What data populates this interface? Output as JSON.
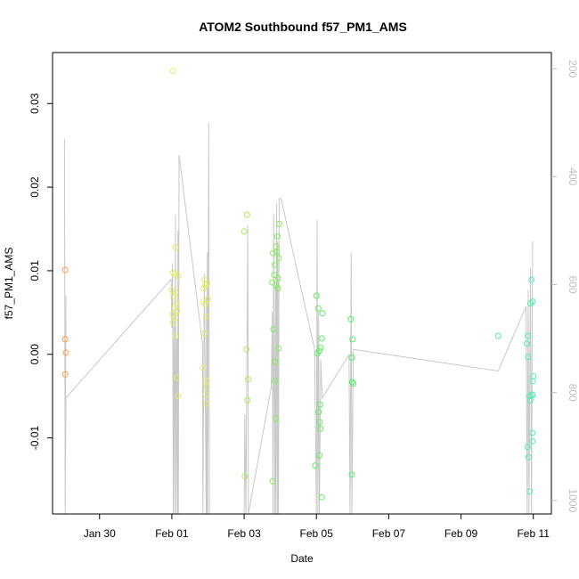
{
  "chart_data": {
    "type": "scatter",
    "title": "ATOM2 Southbound f57_PM1_AMS",
    "xlabel": "Date",
    "ylabel": "f57_PM1_AMS",
    "xlim": [
      -2.3,
      11.5
    ],
    "ylim": [
      -0.0191,
      0.0361
    ],
    "y2lim": [
      1025,
      170
    ],
    "x_ticks": [
      {
        "value": -1,
        "label": "Jan 30"
      },
      {
        "value": 1,
        "label": "Feb 01"
      },
      {
        "value": 3,
        "label": "Feb 03"
      },
      {
        "value": 5,
        "label": "Feb 05"
      },
      {
        "value": 7,
        "label": "Feb 07"
      },
      {
        "value": 9,
        "label": "Feb 09"
      },
      {
        "value": 11,
        "label": "Feb 11"
      }
    ],
    "y_ticks": [
      {
        "value": -0.01,
        "label": "-0.01"
      },
      {
        "value": 0.0,
        "label": "0.00"
      },
      {
        "value": 0.01,
        "label": "0.01"
      },
      {
        "value": 0.02,
        "label": "0.02"
      },
      {
        "value": 0.03,
        "label": "0.03"
      }
    ],
    "y2_ticks": [
      {
        "value": 200,
        "label": "200"
      },
      {
        "value": 400,
        "label": "400"
      },
      {
        "value": 600,
        "label": "600"
      },
      {
        "value": 800,
        "label": "800"
      },
      {
        "value": 1000,
        "label": "1000"
      }
    ],
    "points": [
      {
        "x": -1.95,
        "y": 0.0101,
        "color": "#f0a050"
      },
      {
        "x": -1.95,
        "y": 0.0018,
        "color": "#f0a050"
      },
      {
        "x": -1.93,
        "y": 0.0002,
        "color": "#f0a050"
      },
      {
        "x": -1.95,
        "y": -0.0024,
        "color": "#f0a050"
      },
      {
        "x": 1.03,
        "y": 0.0339,
        "color": "#e4ee60"
      },
      {
        "x": 1.1,
        "y": 0.0128,
        "color": "#e4ee60"
      },
      {
        "x": 1.03,
        "y": 0.0098,
        "color": "#e4ee60"
      },
      {
        "x": 1.08,
        "y": 0.0096,
        "color": "#e4ee60"
      },
      {
        "x": 1.18,
        "y": 0.0094,
        "color": "#e4ee60"
      },
      {
        "x": 1.0,
        "y": 0.0077,
        "color": "#e4ee60"
      },
      {
        "x": 1.1,
        "y": 0.0074,
        "color": "#e4ee60"
      },
      {
        "x": 1.05,
        "y": 0.007,
        "color": "#e4ee60"
      },
      {
        "x": 1.13,
        "y": 0.0061,
        "color": "#e4ee60"
      },
      {
        "x": 1.08,
        "y": 0.0056,
        "color": "#e4ee60"
      },
      {
        "x": 1.15,
        "y": 0.0052,
        "color": "#e4ee60"
      },
      {
        "x": 1.02,
        "y": 0.0048,
        "color": "#e4ee60"
      },
      {
        "x": 1.09,
        "y": 0.0044,
        "color": "#e4ee60"
      },
      {
        "x": 1.04,
        "y": 0.0038,
        "color": "#e4ee60"
      },
      {
        "x": 1.1,
        "y": 0.0022,
        "color": "#e4ee60"
      },
      {
        "x": 1.13,
        "y": -0.0028,
        "color": "#e4ee60"
      },
      {
        "x": 1.17,
        "y": -0.005,
        "color": "#e4ee60"
      },
      {
        "x": 1.9,
        "y": 0.0089,
        "color": "#e4ee60"
      },
      {
        "x": 1.98,
        "y": 0.0085,
        "color": "#e4ee60"
      },
      {
        "x": 1.93,
        "y": 0.0083,
        "color": "#e4ee60"
      },
      {
        "x": 1.88,
        "y": 0.0079,
        "color": "#e4ee60"
      },
      {
        "x": 2.0,
        "y": 0.0066,
        "color": "#e4ee60"
      },
      {
        "x": 1.87,
        "y": 0.0063,
        "color": "#e4ee60"
      },
      {
        "x": 1.92,
        "y": 0.006,
        "color": "#e4ee60"
      },
      {
        "x": 1.95,
        "y": 0.0045,
        "color": "#e4ee60"
      },
      {
        "x": 1.9,
        "y": 0.0025,
        "color": "#e4ee60"
      },
      {
        "x": 1.85,
        "y": -0.0016,
        "color": "#e4ee60"
      },
      {
        "x": 1.94,
        "y": -0.0031,
        "color": "#e4ee60"
      },
      {
        "x": 1.97,
        "y": -0.0039,
        "color": "#e4ee60"
      },
      {
        "x": 1.94,
        "y": -0.0048,
        "color": "#e4ee60"
      },
      {
        "x": 1.96,
        "y": -0.0059,
        "color": "#e4ee60"
      },
      {
        "x": 3.08,
        "y": 0.0167,
        "color": "#a8ee58"
      },
      {
        "x": 3.0,
        "y": 0.0147,
        "color": "#a8ee58"
      },
      {
        "x": 3.06,
        "y": 0.0006,
        "color": "#a8ee58"
      },
      {
        "x": 3.11,
        "y": -0.003,
        "color": "#a8ee58"
      },
      {
        "x": 3.09,
        "y": -0.0055,
        "color": "#a8ee58"
      },
      {
        "x": 3.02,
        "y": -0.0146,
        "color": "#a8ee58"
      },
      {
        "x": 3.97,
        "y": 0.0156,
        "color": "#80ee58"
      },
      {
        "x": 3.92,
        "y": 0.0141,
        "color": "#80ee58"
      },
      {
        "x": 3.88,
        "y": 0.0129,
        "color": "#80ee58"
      },
      {
        "x": 3.9,
        "y": 0.0122,
        "color": "#80ee58"
      },
      {
        "x": 3.8,
        "y": 0.0121,
        "color": "#80ee58"
      },
      {
        "x": 3.96,
        "y": 0.0115,
        "color": "#80ee58"
      },
      {
        "x": 3.85,
        "y": 0.0107,
        "color": "#80ee58"
      },
      {
        "x": 3.83,
        "y": 0.0095,
        "color": "#80ee58"
      },
      {
        "x": 3.94,
        "y": 0.0091,
        "color": "#80ee58"
      },
      {
        "x": 3.78,
        "y": 0.0086,
        "color": "#80ee58"
      },
      {
        "x": 3.89,
        "y": 0.0083,
        "color": "#80ee58"
      },
      {
        "x": 3.93,
        "y": 0.0079,
        "color": "#80ee58"
      },
      {
        "x": 3.81,
        "y": 0.003,
        "color": "#80ee58"
      },
      {
        "x": 3.95,
        "y": 0.0007,
        "color": "#80ee58"
      },
      {
        "x": 3.86,
        "y": -0.0009,
        "color": "#80ee58"
      },
      {
        "x": 3.85,
        "y": -0.0032,
        "color": "#80ee58"
      },
      {
        "x": 3.87,
        "y": -0.0077,
        "color": "#80ee58"
      },
      {
        "x": 3.79,
        "y": -0.0152,
        "color": "#80ee58"
      },
      {
        "x": 5.0,
        "y": 0.007,
        "color": "#60ee60"
      },
      {
        "x": 5.05,
        "y": 0.0055,
        "color": "#60ee60"
      },
      {
        "x": 5.17,
        "y": 0.0049,
        "color": "#60ee60"
      },
      {
        "x": 5.15,
        "y": 0.0019,
        "color": "#60ee60"
      },
      {
        "x": 5.12,
        "y": 0.0008,
        "color": "#60ee60"
      },
      {
        "x": 5.08,
        "y": 0.0004,
        "color": "#60ee60"
      },
      {
        "x": 5.03,
        "y": 0.0001,
        "color": "#60ee60"
      },
      {
        "x": 5.1,
        "y": -0.006,
        "color": "#60ee60"
      },
      {
        "x": 5.06,
        "y": -0.0069,
        "color": "#60ee60"
      },
      {
        "x": 5.09,
        "y": -0.0081,
        "color": "#60ee60"
      },
      {
        "x": 5.11,
        "y": -0.0089,
        "color": "#60ee60"
      },
      {
        "x": 5.08,
        "y": -0.0121,
        "color": "#60ee60"
      },
      {
        "x": 4.97,
        "y": -0.0133,
        "color": "#60ee60"
      },
      {
        "x": 5.15,
        "y": -0.0171,
        "color": "#60ee60"
      },
      {
        "x": 5.95,
        "y": 0.0042,
        "color": "#50ee68"
      },
      {
        "x": 6.0,
        "y": 0.0018,
        "color": "#50ee68"
      },
      {
        "x": 5.98,
        "y": -0.0004,
        "color": "#50ee68"
      },
      {
        "x": 5.99,
        "y": -0.0033,
        "color": "#50ee68"
      },
      {
        "x": 6.02,
        "y": -0.0035,
        "color": "#50ee68"
      },
      {
        "x": 5.98,
        "y": -0.0144,
        "color": "#50ee68"
      },
      {
        "x": 10.03,
        "y": 0.0022,
        "color": "#50ee90"
      },
      {
        "x": 10.95,
        "y": 0.0089,
        "color": "#50eeb0"
      },
      {
        "x": 10.98,
        "y": 0.0063,
        "color": "#50eeb0"
      },
      {
        "x": 10.92,
        "y": 0.0061,
        "color": "#50eeb0"
      },
      {
        "x": 10.85,
        "y": 0.0022,
        "color": "#50eeb0"
      },
      {
        "x": 10.82,
        "y": 0.0013,
        "color": "#50eeb0"
      },
      {
        "x": 10.86,
        "y": -0.0003,
        "color": "#50eeb0"
      },
      {
        "x": 11.0,
        "y": -0.0026,
        "color": "#50eeb0"
      },
      {
        "x": 10.98,
        "y": -0.0032,
        "color": "#50eeb0"
      },
      {
        "x": 10.96,
        "y": -0.0048,
        "color": "#50eeb0"
      },
      {
        "x": 10.98,
        "y": -0.0049,
        "color": "#50eeb0"
      },
      {
        "x": 10.9,
        "y": -0.005,
        "color": "#50eeb0"
      },
      {
        "x": 10.92,
        "y": -0.0055,
        "color": "#50eeb0"
      },
      {
        "x": 10.97,
        "y": -0.0094,
        "color": "#50eeb0"
      },
      {
        "x": 10.98,
        "y": -0.0104,
        "color": "#50eeb0"
      },
      {
        "x": 10.84,
        "y": -0.0111,
        "color": "#50eeb0"
      },
      {
        "x": 10.87,
        "y": -0.0123,
        "color": "#50eeb0"
      },
      {
        "x": 10.9,
        "y": -0.0164,
        "color": "#50eeb0"
      }
    ],
    "track": {
      "color": "#c8c8c8",
      "x": [
        -1.97,
        -1.95,
        -1.93,
        -1.95,
        -1.93,
        0.98,
        1.0,
        1.02,
        1.04,
        1.06,
        1.08,
        1.1,
        1.12,
        1.14,
        1.16,
        1.17,
        1.18,
        1.2,
        1.85,
        1.86,
        1.9,
        1.95,
        1.96,
        1.97,
        1.98,
        1.99,
        2.02,
        2.04,
        3.0,
        3.02,
        3.05,
        3.1,
        3.12,
        3.75,
        3.78,
        3.8,
        3.82,
        3.85,
        3.87,
        3.88,
        3.9,
        3.92,
        3.93,
        3.95,
        3.97,
        4.02,
        4.95,
        5.0,
        5.02,
        5.04,
        5.06,
        5.08,
        5.12,
        5.16,
        5.9,
        5.93,
        5.96,
        5.98,
        6.02,
        10.03,
        10.8,
        10.83,
        10.86,
        10.88,
        10.92,
        10.95,
        10.98
      ],
      "y": [
        330,
        1025,
        620,
        1025,
        810,
        590,
        680,
        560,
        1025,
        650,
        1025,
        470,
        1025,
        700,
        1025,
        500,
        1025,
        360,
        710,
        1025,
        580,
        1025,
        620,
        1025,
        540,
        1025,
        300,
        1025,
        1025,
        840,
        1025,
        490,
        1025,
        790,
        650,
        1025,
        470,
        1025,
        600,
        1025,
        450,
        1025,
        520,
        1025,
        440,
        440,
        720,
        1025,
        480,
        1025,
        650,
        1025,
        740,
        810,
        730,
        1025,
        540,
        1025,
        720,
        760,
        640,
        1025,
        610,
        1025,
        570,
        1025,
        520
      ]
    }
  }
}
